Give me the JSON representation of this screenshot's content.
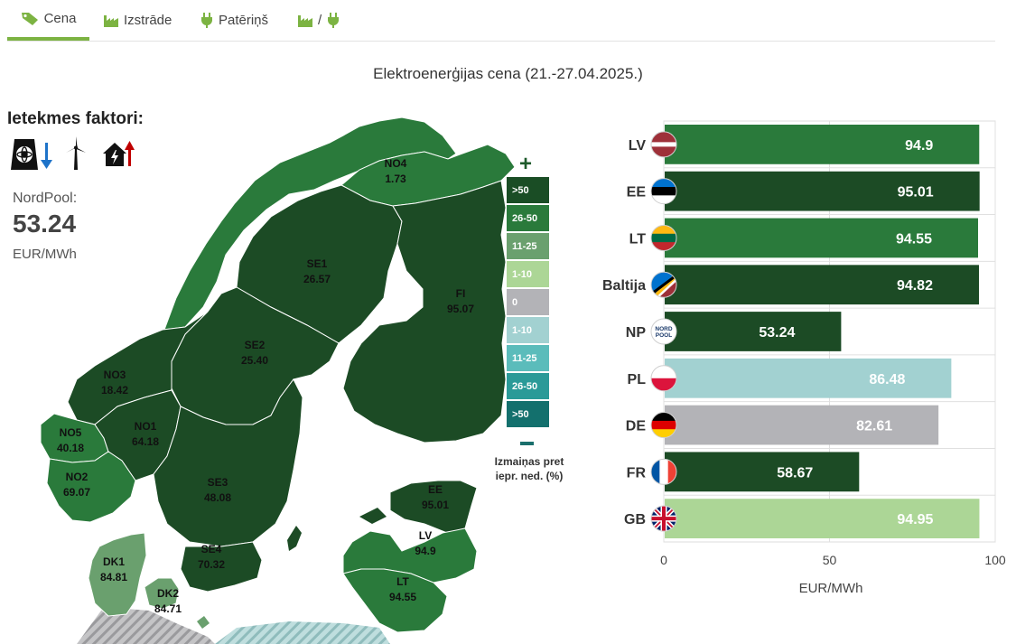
{
  "tabs": [
    {
      "label": "Cena",
      "icon": "tag-icon",
      "active": true
    },
    {
      "label": "Izstrāde",
      "icon": "factory-icon",
      "active": false
    },
    {
      "label": "Patēriņš",
      "icon": "plug-icon",
      "active": false
    },
    {
      "label": "/",
      "icon": "factory-plug-icon",
      "active": false
    }
  ],
  "page_title": "Elektroenerģijas cena (21.-27.04.2025.)",
  "factors": {
    "title": "Ietekmes faktori:",
    "icons": [
      "nuclear-plant-down-icon",
      "wind-turbine-icon",
      "house-consumption-up-icon"
    ]
  },
  "nordpool": {
    "label": "NordPool:",
    "value": "53.24",
    "unit": "EUR/MWh"
  },
  "map": {
    "regions": [
      {
        "name": "NO4",
        "value": "1.73"
      },
      {
        "name": "SE1",
        "value": "26.57"
      },
      {
        "name": "FI",
        "value": "95.07"
      },
      {
        "name": "SE2",
        "value": "25.40"
      },
      {
        "name": "NO3",
        "value": "18.42"
      },
      {
        "name": "NO1",
        "value": "64.18"
      },
      {
        "name": "NO5",
        "value": "40.18"
      },
      {
        "name": "NO2",
        "value": "69.07"
      },
      {
        "name": "SE3",
        "value": "48.08"
      },
      {
        "name": "EE",
        "value": "95.01"
      },
      {
        "name": "LV",
        "value": "94.9"
      },
      {
        "name": "SE4",
        "value": "70.32"
      },
      {
        "name": "DK1",
        "value": "84.81"
      },
      {
        "name": "LT",
        "value": "94.55"
      },
      {
        "name": "DK2",
        "value": "84.71"
      }
    ],
    "legend": {
      "bins": [
        {
          "label": ">50",
          "color": "#1a4d25"
        },
        {
          "label": "26-50",
          "color": "#2a7a3b"
        },
        {
          "label": "11-25",
          "color": "#6aa06e"
        },
        {
          "label": "1-10",
          "color": "#acd696"
        },
        {
          "label": "0",
          "color": "#b3b3b7"
        },
        {
          "label": "1-10",
          "color": "#a2d1d1"
        },
        {
          "label": "11-25",
          "color": "#5bbcbb"
        },
        {
          "label": "26-50",
          "color": "#2a9a98"
        },
        {
          "label": ">50",
          "color": "#13706d"
        }
      ],
      "caption_line1": "Izmaiņas pret",
      "caption_line2": "iepr. ned. (%)"
    }
  },
  "colors": {
    "dark_green": "#1c4b25",
    "mid_green": "#2a7a3b",
    "light_green": "#acd696",
    "light_teal": "#a2d1d1",
    "gray": "#b3b3b7",
    "accent": "#7cb342"
  },
  "chart_data": {
    "type": "bar",
    "orientation": "horizontal",
    "categories": [
      "LV",
      "EE",
      "LT",
      "Baltija",
      "NP",
      "PL",
      "DE",
      "FR",
      "GB"
    ],
    "values": [
      94.9,
      95.01,
      94.55,
      94.82,
      53.24,
      86.48,
      82.61,
      58.67,
      94.95
    ],
    "value_labels": [
      "94.9",
      "95.01",
      "94.55",
      "94.82",
      "53.24",
      "86.48",
      "82.61",
      "58.67",
      "94.95"
    ],
    "bar_colors": [
      "#2a7a3b",
      "#1c4b25",
      "#2a7a3b",
      "#1c4b25",
      "#1c4b25",
      "#a2d1d1",
      "#b3b3b7",
      "#1c4b25",
      "#acd696"
    ],
    "flags": [
      "flag-latvia-icon",
      "flag-estonia-icon",
      "flag-lithuania-icon",
      "flag-baltic-icon",
      "nordpool-logo-icon",
      "flag-poland-icon",
      "flag-germany-icon",
      "flag-france-icon",
      "flag-uk-icon"
    ],
    "xlabel": "EUR/MWh",
    "xlim": [
      0,
      100
    ],
    "xticks": [
      "0",
      "50",
      "100"
    ],
    "grid": true
  }
}
